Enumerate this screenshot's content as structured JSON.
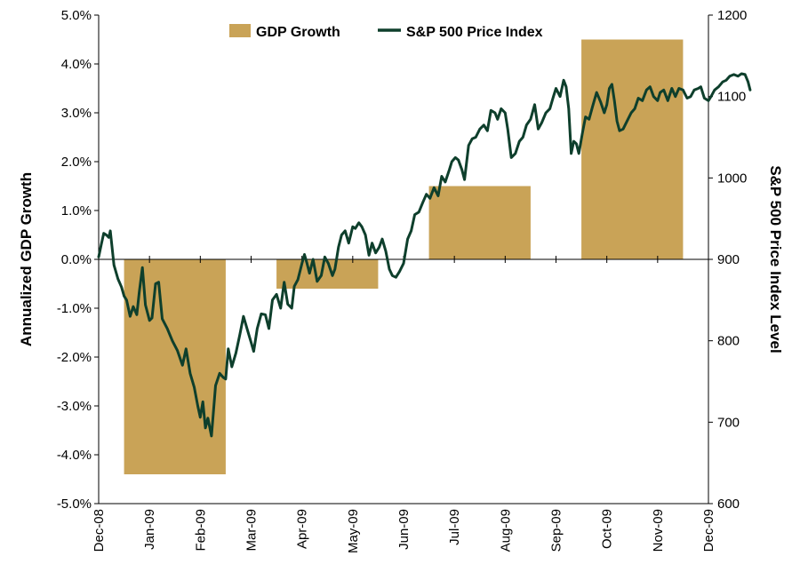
{
  "chart_data": {
    "type": "bar+line",
    "colors": {
      "bar": "#C9A357",
      "line": "#0E3F2C",
      "axis": "#000000"
    },
    "legend": {
      "placement": "top",
      "bar_label": "GDP Growth",
      "line_label": "S&P 500 Price Index"
    },
    "ylabel_left": "Annualized GDP Growth",
    "ylabel_right": "S&P 500 Price Index Level",
    "ylim_left": [
      -5.0,
      5.0
    ],
    "ylim_right": [
      600,
      1200
    ],
    "left_ticks": [
      "5.0%",
      "4.0%",
      "3.0%",
      "2.0%",
      "1.0%",
      "0.0%",
      "-1.0%",
      "-2.0%",
      "-3.0%",
      "-4.0%",
      "-5.0%"
    ],
    "right_ticks": [
      "1200",
      "1100",
      "1000",
      "900",
      "800",
      "700",
      "600"
    ],
    "x_ticks": [
      "Dec-08",
      "Jan-09",
      "Feb-09",
      "Mar-09",
      "Apr-09",
      "May-09",
      "Jun-09",
      "Jul-09",
      "Aug-09",
      "Sep-09",
      "Oct-09",
      "Nov-09",
      "Dec-09"
    ],
    "gdp_bars": [
      {
        "start": 0.5,
        "end": 2.5,
        "value": -4.4
      },
      {
        "start": 3.5,
        "end": 5.5,
        "value": -0.6
      },
      {
        "start": 6.5,
        "end": 8.5,
        "value": 1.5
      },
      {
        "start": 9.5,
        "end": 11.5,
        "value": 4.5
      }
    ],
    "sp500": [
      [
        0.0,
        903
      ],
      [
        0.05,
        918
      ],
      [
        0.1,
        932
      ],
      [
        0.15,
        930
      ],
      [
        0.2,
        927
      ],
      [
        0.23,
        935
      ],
      [
        0.3,
        893
      ],
      [
        0.38,
        876
      ],
      [
        0.45,
        866
      ],
      [
        0.5,
        855
      ],
      [
        0.55,
        850
      ],
      [
        0.62,
        830
      ],
      [
        0.68,
        842
      ],
      [
        0.75,
        832
      ],
      [
        0.8,
        860
      ],
      [
        0.86,
        890
      ],
      [
        0.92,
        844
      ],
      [
        1.0,
        825
      ],
      [
        1.05,
        828
      ],
      [
        1.12,
        870
      ],
      [
        1.18,
        872
      ],
      [
        1.25,
        827
      ],
      [
        1.35,
        815
      ],
      [
        1.45,
        800
      ],
      [
        1.55,
        788
      ],
      [
        1.65,
        770
      ],
      [
        1.72,
        790
      ],
      [
        1.8,
        760
      ],
      [
        1.88,
        743
      ],
      [
        1.95,
        720
      ],
      [
        2.0,
        706
      ],
      [
        2.05,
        725
      ],
      [
        2.1,
        693
      ],
      [
        2.15,
        705
      ],
      [
        2.22,
        683
      ],
      [
        2.3,
        745
      ],
      [
        2.38,
        760
      ],
      [
        2.45,
        755
      ],
      [
        2.5,
        753
      ],
      [
        2.55,
        790
      ],
      [
        2.62,
        768
      ],
      [
        2.7,
        785
      ],
      [
        2.78,
        808
      ],
      [
        2.85,
        830
      ],
      [
        2.92,
        815
      ],
      [
        3.0,
        798
      ],
      [
        3.05,
        787
      ],
      [
        3.12,
        815
      ],
      [
        3.2,
        833
      ],
      [
        3.28,
        832
      ],
      [
        3.35,
        815
      ],
      [
        3.42,
        850
      ],
      [
        3.5,
        857
      ],
      [
        3.58,
        840
      ],
      [
        3.65,
        872
      ],
      [
        3.72,
        845
      ],
      [
        3.8,
        840
      ],
      [
        3.85,
        867
      ],
      [
        3.92,
        875
      ],
      [
        4.0,
        895
      ],
      [
        4.05,
        906
      ],
      [
        4.1,
        895
      ],
      [
        4.15,
        883
      ],
      [
        4.22,
        900
      ],
      [
        4.3,
        873
      ],
      [
        4.38,
        880
      ],
      [
        4.45,
        903
      ],
      [
        4.52,
        895
      ],
      [
        4.6,
        880
      ],
      [
        4.65,
        888
      ],
      [
        4.72,
        915
      ],
      [
        4.78,
        930
      ],
      [
        4.85,
        935
      ],
      [
        4.92,
        920
      ],
      [
        5.0,
        940
      ],
      [
        5.05,
        938
      ],
      [
        5.12,
        945
      ],
      [
        5.18,
        940
      ],
      [
        5.25,
        930
      ],
      [
        5.32,
        905
      ],
      [
        5.38,
        920
      ],
      [
        5.45,
        908
      ],
      [
        5.52,
        915
      ],
      [
        5.58,
        925
      ],
      [
        5.65,
        910
      ],
      [
        5.72,
        888
      ],
      [
        5.78,
        880
      ],
      [
        5.85,
        878
      ],
      [
        5.92,
        885
      ],
      [
        6.0,
        895
      ],
      [
        6.08,
        925
      ],
      [
        6.15,
        935
      ],
      [
        6.22,
        955
      ],
      [
        6.3,
        958
      ],
      [
        6.38,
        970
      ],
      [
        6.45,
        980
      ],
      [
        6.52,
        975
      ],
      [
        6.6,
        988
      ],
      [
        6.68,
        978
      ],
      [
        6.75,
        1002
      ],
      [
        6.82,
        995
      ],
      [
        6.9,
        1010
      ],
      [
        6.95,
        1020
      ],
      [
        7.02,
        1025
      ],
      [
        7.08,
        1022
      ],
      [
        7.15,
        1010
      ],
      [
        7.2,
        998
      ],
      [
        7.28,
        1040
      ],
      [
        7.35,
        1048
      ],
      [
        7.42,
        1050
      ],
      [
        7.5,
        1060
      ],
      [
        7.58,
        1065
      ],
      [
        7.65,
        1058
      ],
      [
        7.72,
        1083
      ],
      [
        7.8,
        1080
      ],
      [
        7.85,
        1072
      ],
      [
        7.92,
        1085
      ],
      [
        8.0,
        1080
      ],
      [
        8.05,
        1060
      ],
      [
        8.12,
        1025
      ],
      [
        8.2,
        1030
      ],
      [
        8.28,
        1045
      ],
      [
        8.35,
        1050
      ],
      [
        8.42,
        1065
      ],
      [
        8.5,
        1072
      ],
      [
        8.58,
        1090
      ],
      [
        8.65,
        1060
      ],
      [
        8.72,
        1068
      ],
      [
        8.8,
        1080
      ],
      [
        8.88,
        1085
      ],
      [
        8.95,
        1100
      ],
      [
        9.0,
        1110
      ],
      [
        9.08,
        1100
      ],
      [
        9.15,
        1120
      ],
      [
        9.2,
        1112
      ],
      [
        9.25,
        1085
      ],
      [
        9.3,
        1030
      ],
      [
        9.35,
        1045
      ],
      [
        9.4,
        1042
      ],
      [
        9.45,
        1030
      ],
      [
        9.52,
        1055
      ],
      [
        9.58,
        1075
      ],
      [
        9.65,
        1072
      ],
      [
        9.72,
        1088
      ],
      [
        9.8,
        1105
      ],
      [
        9.88,
        1093
      ],
      [
        9.95,
        1080
      ],
      [
        10.0,
        1090
      ],
      [
        10.05,
        1110
      ],
      [
        10.1,
        1115
      ],
      [
        10.15,
        1095
      ],
      [
        10.2,
        1070
      ],
      [
        10.25,
        1058
      ],
      [
        10.32,
        1060
      ],
      [
        10.4,
        1070
      ],
      [
        10.48,
        1080
      ],
      [
        10.55,
        1085
      ],
      [
        10.62,
        1098
      ],
      [
        10.7,
        1095
      ],
      [
        10.78,
        1108
      ],
      [
        10.85,
        1112
      ],
      [
        10.92,
        1100
      ],
      [
        11.0,
        1095
      ],
      [
        11.05,
        1105
      ],
      [
        11.12,
        1108
      ],
      [
        11.2,
        1095
      ],
      [
        11.28,
        1110
      ],
      [
        11.35,
        1100
      ],
      [
        11.42,
        1110
      ],
      [
        11.5,
        1108
      ],
      [
        11.58,
        1098
      ],
      [
        11.65,
        1100
      ],
      [
        11.72,
        1108
      ],
      [
        11.8,
        1110
      ],
      [
        11.85,
        1112
      ],
      [
        11.92,
        1098
      ],
      [
        12.0,
        1095
      ],
      [
        12.05,
        1100
      ],
      [
        12.12,
        1108
      ],
      [
        12.2,
        1112
      ],
      [
        12.28,
        1118
      ],
      [
        12.35,
        1120
      ],
      [
        12.42,
        1125
      ],
      [
        12.5,
        1127
      ],
      [
        12.58,
        1125
      ],
      [
        12.65,
        1128
      ],
      [
        12.72,
        1127
      ],
      [
        12.78,
        1118
      ],
      [
        12.82,
        1108
      ]
    ]
  }
}
